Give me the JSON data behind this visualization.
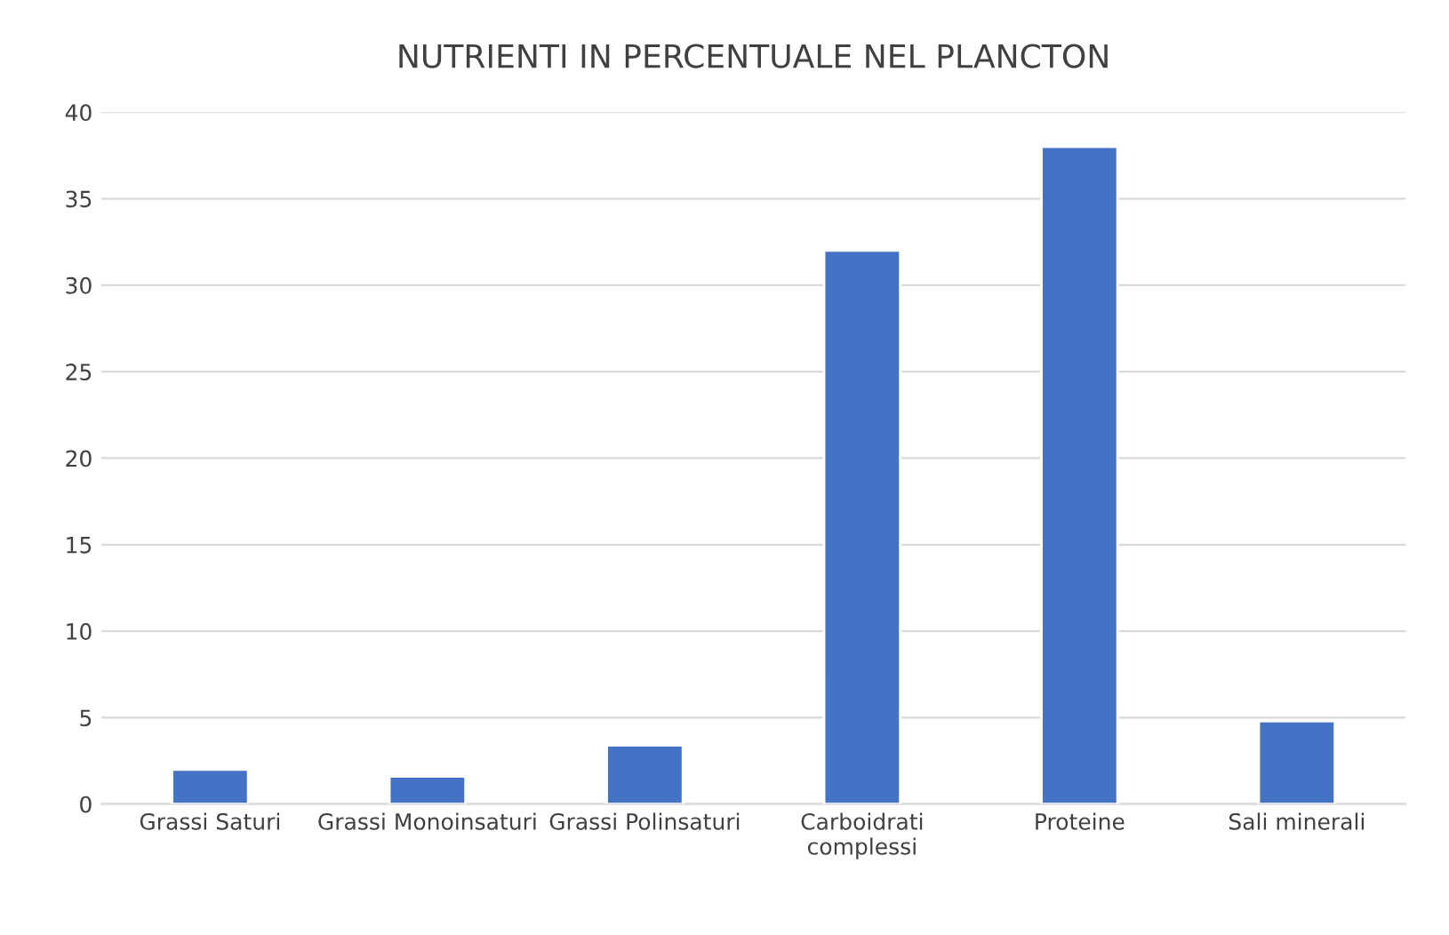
{
  "chart_data": {
    "type": "bar",
    "title": "NUTRIENTI IN PERCENTUALE NEL PLANCTON",
    "categories": [
      "Grassi Saturi",
      "Grassi Monoinsaturi",
      "Grassi Polinsaturi",
      "Carboidrati\ncomplessi",
      "Proteine",
      "Sali minerali"
    ],
    "values": [
      2.0,
      1.6,
      3.4,
      32,
      38,
      4.8
    ],
    "color": "#4472c4",
    "ylim": [
      0,
      40
    ],
    "yticks": [
      0,
      5,
      10,
      15,
      20,
      25,
      30,
      35,
      40
    ],
    "grid": "y",
    "legend": false
  }
}
